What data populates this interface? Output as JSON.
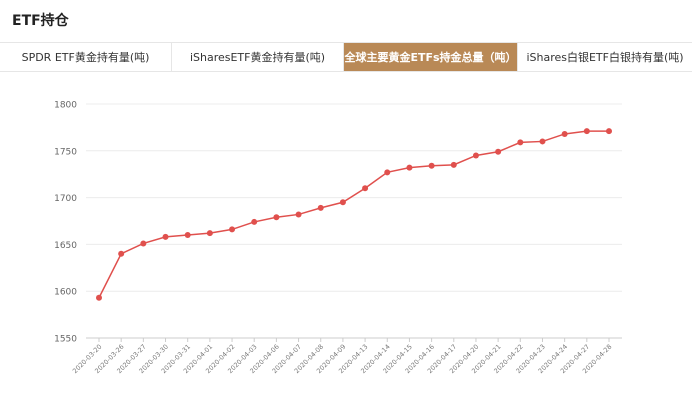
{
  "header": {
    "title": "ETF持仓"
  },
  "tabs": [
    {
      "label": "SPDR ETF黄金持有量(吨)",
      "active": false
    },
    {
      "label": "iSharesETF黄金持有量(吨)",
      "active": false
    },
    {
      "label": "全球主要黄金ETFs持金总量（吨）",
      "active": true
    },
    {
      "label": "iShares白银ETF白银持有量(吨)",
      "active": false
    }
  ],
  "colors": {
    "accent": "#b98956",
    "line": "#e0504d"
  },
  "chart_data": {
    "type": "line",
    "title": "",
    "xlabel": "",
    "ylabel": "",
    "ylim": [
      1550,
      1800
    ],
    "yticks": [
      1550,
      1600,
      1650,
      1700,
      1750,
      1800
    ],
    "grid": true,
    "categories": [
      "2020-03-20",
      "2020-03-26",
      "2020-03-27",
      "2020-03-30",
      "2020-03-31",
      "2020-04-01",
      "2020-04-02",
      "2020-04-03",
      "2020-04-06",
      "2020-04-07",
      "2020-04-08",
      "2020-04-09",
      "2020-04-13",
      "2020-04-14",
      "2020-04-15",
      "2020-04-16",
      "2020-04-17",
      "2020-04-20",
      "2020-04-21",
      "2020-04-22",
      "2020-04-23",
      "2020-04-24",
      "2020-04-27",
      "2020-04-28"
    ],
    "values": [
      1593,
      1640,
      1651,
      1658,
      1660,
      1662,
      1666,
      1674,
      1679,
      1682,
      1689,
      1695,
      1710,
      1727,
      1732,
      1734,
      1735,
      1745,
      1749,
      1759,
      1760,
      1768,
      1771,
      1771
    ]
  }
}
